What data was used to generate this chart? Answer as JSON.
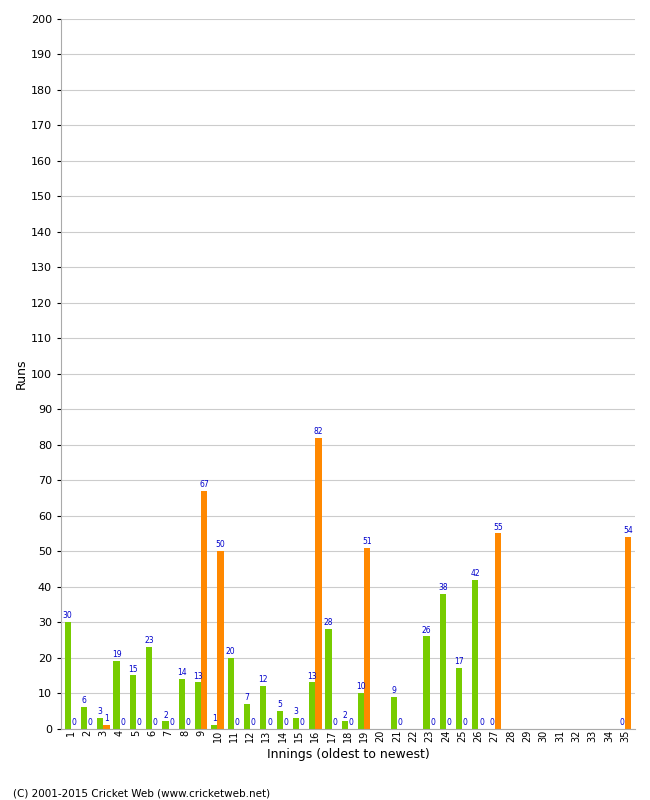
{
  "xlabel": "Innings (oldest to newest)",
  "ylabel": "Runs",
  "ylim": [
    0,
    200
  ],
  "yticks": [
    0,
    10,
    20,
    30,
    40,
    50,
    60,
    70,
    80,
    90,
    100,
    110,
    120,
    130,
    140,
    150,
    160,
    170,
    180,
    190,
    200
  ],
  "innings": [
    1,
    2,
    3,
    4,
    5,
    6,
    7,
    8,
    9,
    10,
    11,
    12,
    13,
    14,
    15,
    16,
    17,
    18,
    19,
    20,
    21,
    22,
    23,
    24,
    25,
    26,
    27,
    28,
    29,
    30,
    31,
    32,
    33,
    34,
    35
  ],
  "green_values": [
    30,
    6,
    3,
    19,
    15,
    23,
    2,
    14,
    13,
    1,
    20,
    7,
    12,
    5,
    3,
    13,
    28,
    2,
    10,
    0,
    9,
    0,
    26,
    38,
    17,
    42,
    0,
    0,
    0,
    0,
    0,
    0,
    0,
    0,
    0
  ],
  "orange_values": [
    0,
    0,
    1,
    0,
    0,
    0,
    0,
    0,
    67,
    50,
    0,
    0,
    0,
    0,
    0,
    82,
    0,
    0,
    51,
    0,
    0,
    0,
    0,
    0,
    0,
    0,
    55,
    0,
    0,
    0,
    0,
    0,
    0,
    0,
    54
  ],
  "green_color": "#77CC00",
  "orange_color": "#FF8800",
  "bg_color": "#FFFFFF",
  "grid_color": "#CCCCCC",
  "label_color": "#0000CC",
  "footer": "(C) 2001-2015 Cricket Web (www.cricketweb.net)"
}
